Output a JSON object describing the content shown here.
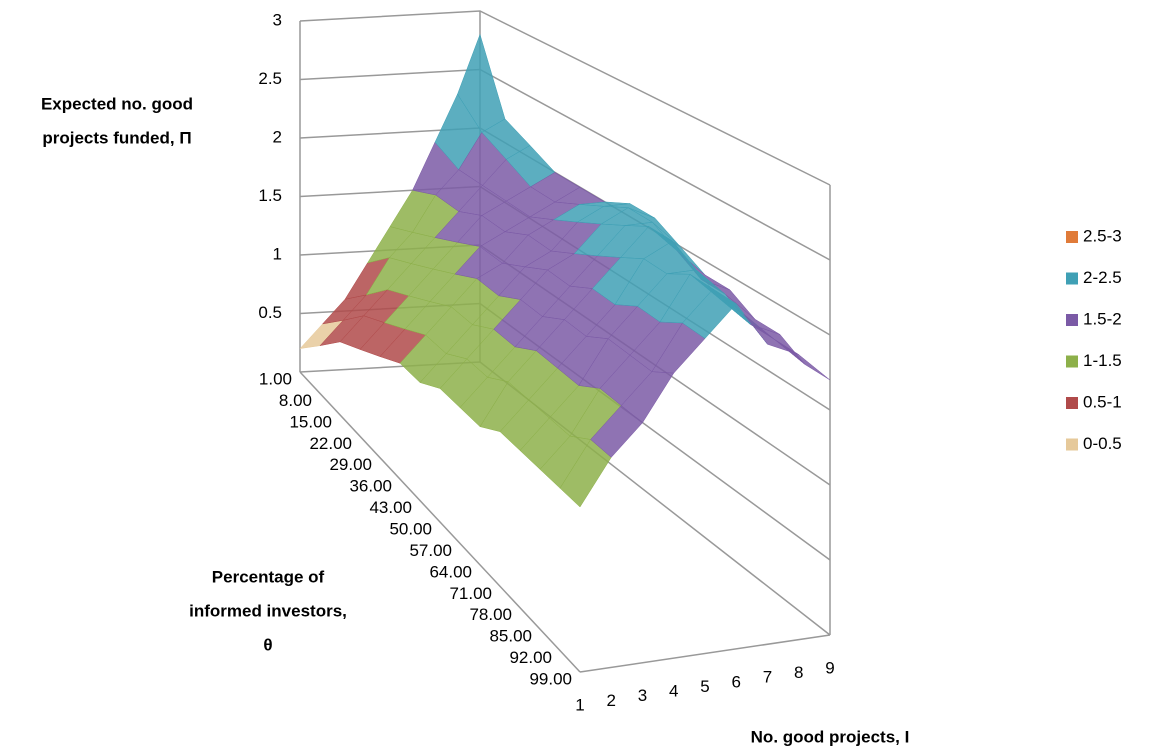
{
  "chart_data": {
    "type": "surface",
    "z_label": [
      "Expected no. good",
      "projects funded, Π"
    ],
    "y_label": [
      "Percentage of",
      "informed investors,",
      "θ"
    ],
    "x_label": "No. good projects, I",
    "x": [
      1,
      2,
      3,
      4,
      5,
      6,
      7,
      8,
      9
    ],
    "categories": [
      "1.00",
      "8.00",
      "15.00",
      "22.00",
      "29.00",
      "36.00",
      "43.00",
      "50.00",
      "57.00",
      "64.00",
      "71.00",
      "78.00",
      "85.00",
      "92.00",
      "99.00"
    ],
    "zlim": [
      0,
      3
    ],
    "zticks": [
      0.5,
      1,
      1.5,
      2,
      2.5,
      3
    ],
    "bands": [
      {
        "name": "2.5-3",
        "color": "#e07b39",
        "range": [
          2.5,
          3
        ]
      },
      {
        "name": "2-2.5",
        "color": "#3fa0b5",
        "range": [
          2,
          2.5
        ]
      },
      {
        "name": "1.5-2",
        "color": "#7b5aa6",
        "range": [
          1.5,
          2
        ]
      },
      {
        "name": "1-1.5",
        "color": "#8db04a",
        "range": [
          1,
          1.5
        ]
      },
      {
        "name": "0.5-1",
        "color": "#b04a4a",
        "range": [
          0.5,
          1
        ]
      },
      {
        "name": "0-0.5",
        "color": "#e6c99a",
        "range": [
          0,
          0.5
        ]
      }
    ],
    "values": [
      [
        0.2,
        0.4,
        0.6,
        0.9,
        1.2,
        1.5,
        1.9,
        2.3,
        2.8
      ],
      [
        0.4,
        0.6,
        0.8,
        1.1,
        1.3,
        1.6,
        1.8,
        2.1,
        2.2
      ],
      [
        0.6,
        0.8,
        1.0,
        1.2,
        1.4,
        1.6,
        1.8,
        2.0,
        2.1
      ],
      [
        0.7,
        0.9,
        1.1,
        1.3,
        1.5,
        1.7,
        1.8,
        1.9,
        2.0
      ],
      [
        0.8,
        1.0,
        1.2,
        1.4,
        1.6,
        1.7,
        1.8,
        1.9,
        2.0
      ],
      [
        0.9,
        1.1,
        1.3,
        1.5,
        1.6,
        1.8,
        1.9,
        2.0,
        2.0
      ],
      [
        0.9,
        1.1,
        1.3,
        1.5,
        1.7,
        1.8,
        2.0,
        2.1,
        2.1
      ],
      [
        1.0,
        1.2,
        1.4,
        1.6,
        1.8,
        1.9,
        2.1,
        2.2,
        2.1
      ],
      [
        1.0,
        1.2,
        1.4,
        1.6,
        1.8,
        2.0,
        2.2,
        2.2,
        2.0
      ],
      [
        1.0,
        1.3,
        1.5,
        1.7,
        1.9,
        2.1,
        2.3,
        2.1,
        1.9
      ],
      [
        1.1,
        1.3,
        1.5,
        1.7,
        1.9,
        2.2,
        2.3,
        2.0,
        1.9
      ],
      [
        1.1,
        1.3,
        1.5,
        1.8,
        2.0,
        2.2,
        2.2,
        2.0,
        1.8
      ],
      [
        1.1,
        1.3,
        1.6,
        1.8,
        2.0,
        2.3,
        2.1,
        1.9,
        1.8
      ],
      [
        1.1,
        1.4,
        1.6,
        1.8,
        2.1,
        2.3,
        2.1,
        1.9,
        1.7
      ],
      [
        1.1,
        1.4,
        1.6,
        1.9,
        2.1,
        2.3,
        2.0,
        1.9,
        1.7
      ]
    ]
  }
}
